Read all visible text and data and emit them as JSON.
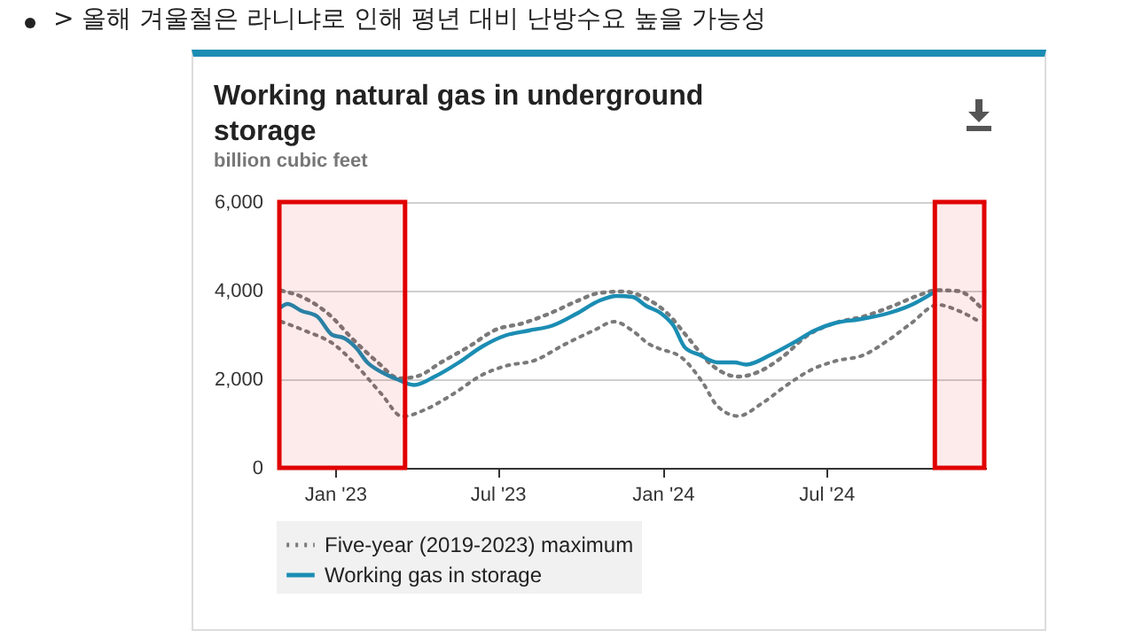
{
  "chart_data": {
    "type": "line",
    "title": "Working natural gas in underground storage",
    "subtitle": "billion cubic feet",
    "annotations": [
      "> 올해 겨울철은 라니냐로 인해 평년 대비 난방수요 높을 가능성"
    ],
    "xlim": [
      "2022-10-28",
      "2024-12-26"
    ],
    "xticks": [
      {
        "value": "2023-01-01",
        "label": "Jan '23"
      },
      {
        "value": "2023-07-01",
        "label": "Jul '23"
      },
      {
        "value": "2024-01-01",
        "label": "Jan '24"
      },
      {
        "value": "2024-07-01",
        "label": "Jul '24"
      }
    ],
    "ylim": [
      0,
      6000
    ],
    "yticks": [
      0,
      {
        "value": 2000,
        "label": "2,000"
      },
      {
        "value": 4000,
        "label": "4,000"
      },
      {
        "value": 6000,
        "label": "6,000"
      }
    ],
    "grid": "y",
    "legend": "bottom",
    "marker": "none",
    "series": [
      {
        "name": "Five-year (2019-2023) maximum",
        "color": "#7a7a7a",
        "line_style": "dotted",
        "x": [
          "2022-11-02",
          "2022-11-25",
          "2022-12-26",
          "2023-01-21",
          "2023-02-16",
          "2023-03-14",
          "2023-04-03",
          "2023-04-29",
          "2023-06-01",
          "2023-06-27",
          "2023-07-30",
          "2023-08-31",
          "2023-09-27",
          "2023-10-23",
          "2023-11-18",
          "2023-12-14",
          "2024-01-06",
          "2024-01-29",
          "2024-02-24",
          "2024-03-25",
          "2024-04-17",
          "2024-05-13",
          "2024-06-11",
          "2024-07-11",
          "2024-08-12",
          "2024-09-14",
          "2024-10-10",
          "2024-11-02",
          "2024-11-25",
          "2024-12-21"
        ],
        "values": [
          4000,
          3860,
          3450,
          2900,
          2410,
          2020,
          2070,
          2380,
          2760,
          3100,
          3270,
          3510,
          3760,
          3950,
          3980,
          3820,
          3490,
          2940,
          2330,
          2060,
          2170,
          2500,
          3000,
          3270,
          3420,
          3660,
          3880,
          4010,
          3990,
          3600
        ]
      },
      {
        "name": "Working gas in storage",
        "color": "#1b8db3",
        "line_style": "solid",
        "x": [
          "2022-11-02",
          "2022-11-09",
          "2022-11-25",
          "2022-12-12",
          "2022-12-29",
          "2023-01-11",
          "2023-01-24",
          "2023-02-06",
          "2023-02-22",
          "2023-03-11",
          "2023-03-30",
          "2023-04-22",
          "2023-05-19",
          "2023-06-14",
          "2023-07-10",
          "2023-08-05",
          "2023-08-31",
          "2023-09-27",
          "2023-10-23",
          "2023-11-11",
          "2023-11-28",
          "2023-12-14",
          "2023-12-30",
          "2024-01-13",
          "2024-01-26",
          "2024-02-11",
          "2024-03-02",
          "2024-03-21",
          "2024-04-03",
          "2024-04-30",
          "2024-05-26",
          "2024-06-18",
          "2024-07-11",
          "2024-08-06",
          "2024-09-08",
          "2024-10-04",
          "2024-10-27"
        ],
        "values": [
          3630,
          3700,
          3540,
          3420,
          3000,
          2930,
          2720,
          2380,
          2160,
          2000,
          1870,
          2060,
          2380,
          2740,
          2990,
          3100,
          3210,
          3480,
          3780,
          3880,
          3860,
          3650,
          3490,
          3210,
          2710,
          2550,
          2380,
          2380,
          2330,
          2550,
          2830,
          3100,
          3270,
          3350,
          3490,
          3680,
          3940
        ]
      },
      {
        "color": "#7a7a7a",
        "line_style": "dotted",
        "x": [
          "2022-11-02",
          "2022-11-28",
          "2023-01-01",
          "2023-01-24",
          "2023-02-22",
          "2023-03-17",
          "2023-04-13",
          "2023-05-12",
          "2023-06-14",
          "2023-07-10",
          "2023-08-12",
          "2023-09-13",
          "2023-10-16",
          "2023-11-08",
          "2023-11-28",
          "2023-12-17",
          "2023-12-27",
          "2024-01-22",
          "2024-02-14",
          "2024-03-02",
          "2024-03-25",
          "2024-04-20",
          "2024-05-19",
          "2024-06-14",
          "2024-07-11",
          "2024-08-12",
          "2024-09-08",
          "2024-10-04",
          "2024-11-02",
          "2024-11-25",
          "2024-12-21"
        ],
        "values": [
          3300,
          3100,
          2770,
          2330,
          1660,
          1160,
          1330,
          1660,
          2100,
          2300,
          2430,
          2780,
          3100,
          3300,
          3100,
          2790,
          2700,
          2490,
          1940,
          1390,
          1170,
          1450,
          1880,
          2210,
          2410,
          2550,
          2880,
          3270,
          3680,
          3550,
          3270
        ]
      }
    ],
    "bands": [
      {
        "axis": "x",
        "from": "2022-10-31",
        "to": "2023-03-20",
        "color": "#e00000"
      },
      {
        "axis": "x",
        "from": "2024-10-30",
        "to": "2024-12-24",
        "color": "#e00000"
      }
    ]
  }
}
